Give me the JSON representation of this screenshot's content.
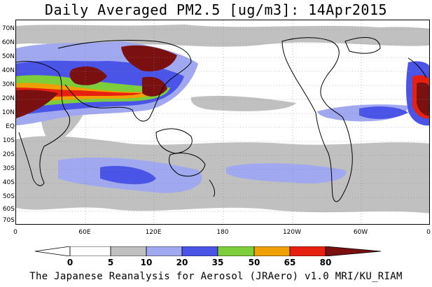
{
  "title": "Daily Averaged PM2.5 [ug/m3]: 14Apr2015",
  "footer": "The Japanese Reanalysis for Aerosol (JRAero) v1.0 MRI/KU_RIAM",
  "lat_labels": [
    "70N",
    "60N",
    "50N",
    "40N",
    "30N",
    "20N",
    "10N",
    "EQ",
    "10S",
    "20S",
    "30S",
    "40S",
    "50S",
    "60S",
    "70S"
  ],
  "lon_labels": [
    "0",
    "60E",
    "120E",
    "180",
    "120W",
    "60W",
    "0"
  ],
  "colorbar": {
    "labels": [
      "0",
      "5",
      "10",
      "20",
      "35",
      "50",
      "65",
      "80"
    ],
    "colors": [
      "#ffffff",
      "#c0c0c0",
      "#a0a8f0",
      "#4a55e8",
      "#7ccf3a",
      "#f0a000",
      "#e82010",
      "#7a1010"
    ]
  },
  "map_colors": {
    "land_outline": "#000000",
    "grid": "#8a8a8a"
  }
}
